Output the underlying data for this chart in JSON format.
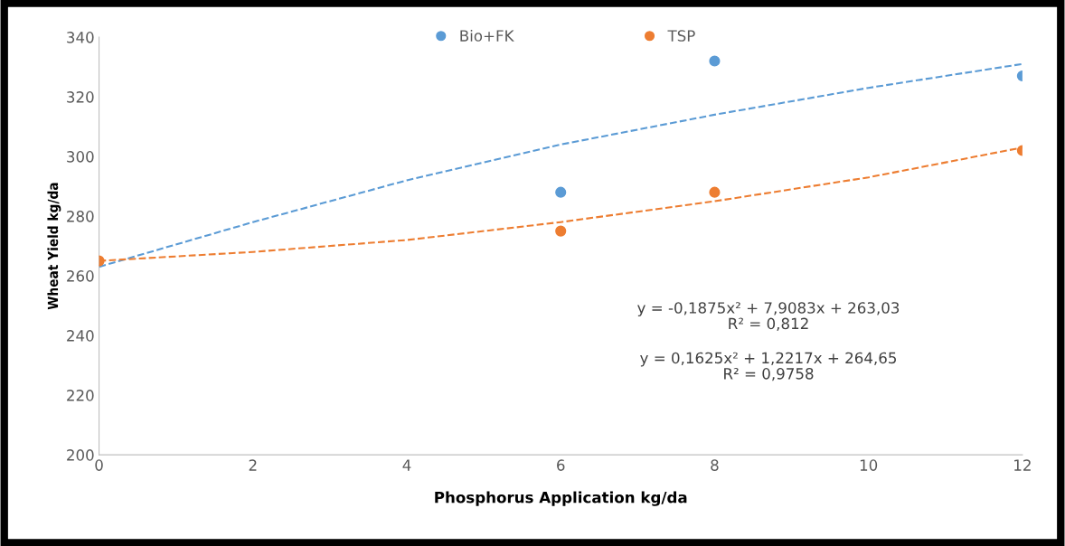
{
  "chart_data": {
    "type": "scatter",
    "xlabel": "Phosphorus Application kg/da",
    "ylabel": "Wheat Yield kg/da",
    "xlim": [
      0,
      12
    ],
    "xticks": [
      0,
      2,
      4,
      6,
      8,
      10,
      12
    ],
    "ylim": [
      200,
      340
    ],
    "yticks": [
      200,
      220,
      240,
      260,
      280,
      300,
      320,
      340
    ],
    "grid": false,
    "legend": "top",
    "marker": "circle",
    "series": [
      {
        "name": "Bio+FK",
        "color": "#5b9bd5",
        "x": [
          6,
          8,
          12
        ],
        "values": [
          288,
          332,
          327
        ]
      },
      {
        "name": "TSP",
        "color": "#ed7d31",
        "x": [
          0,
          6,
          8,
          12
        ],
        "values": [
          265,
          275,
          288,
          302
        ]
      },
      {
        "type": "line",
        "color": "#5b9bd5",
        "line_style": "dashed",
        "marker": "none",
        "x": [
          0,
          2,
          4,
          6,
          8,
          10,
          12
        ],
        "values": [
          263,
          278,
          292,
          304,
          314,
          323,
          331
        ]
      },
      {
        "type": "line",
        "color": "#ed7d31",
        "line_style": "dashed",
        "marker": "none",
        "x": [
          0,
          2,
          4,
          6,
          8,
          10,
          12
        ],
        "values": [
          265,
          268,
          272,
          278,
          285,
          293,
          303
        ]
      }
    ],
    "annotations": [
      "y = -0,1875x² + 7,9083x + 263,03\nR² = 0,812",
      "y = 0,1625x² + 1,2217x + 264,65\nR² = 0,9758"
    ]
  }
}
